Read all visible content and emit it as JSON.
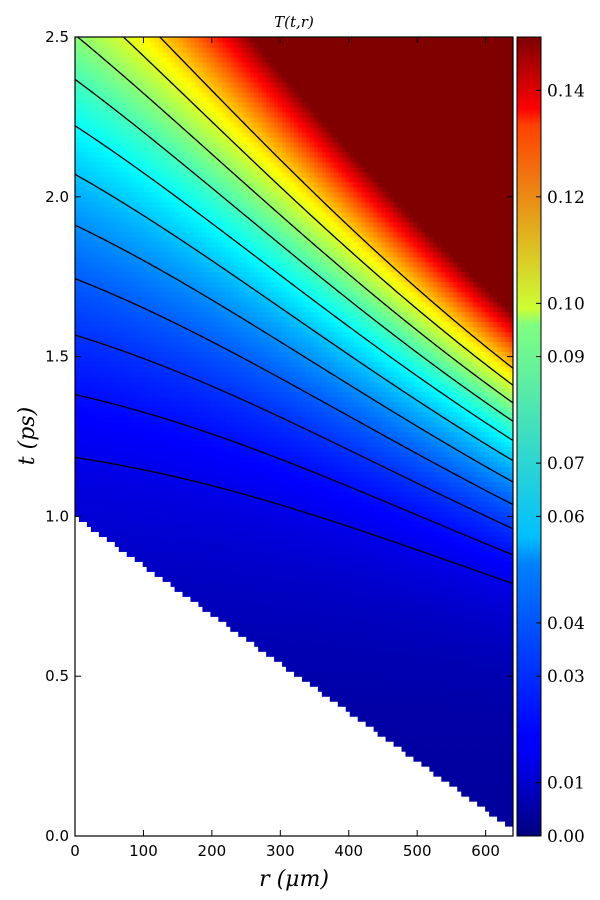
{
  "chart_data": {
    "type": "heatmap",
    "title": "T(t,r)",
    "xlabel": "r   (μm)",
    "ylabel": "t   (ps)",
    "xlim": [
      0,
      640
    ],
    "ylim": [
      0,
      2.5
    ],
    "x_ticks": [
      0,
      100,
      200,
      300,
      400,
      500,
      600
    ],
    "y_ticks": [
      0.0,
      0.5,
      1.0,
      1.5,
      2.0,
      2.5
    ],
    "x_tick_labels": [
      "0",
      "100",
      "200",
      "300",
      "400",
      "500",
      "600"
    ],
    "y_tick_labels": [
      "0.0",
      "0.5",
      "1.0",
      "1.5",
      "2.0",
      "2.5"
    ],
    "colorbar": {
      "range": [
        0,
        0.15
      ],
      "ticks": [
        0.0,
        0.01,
        0.03,
        0.04,
        0.06,
        0.07,
        0.09,
        0.1,
        0.12,
        0.14
      ],
      "tick_labels": [
        "0.00",
        "0.01",
        "0.03",
        "0.04",
        "0.06",
        "0.07",
        "0.09",
        "0.10",
        "0.12",
        "0.14"
      ]
    },
    "domain_boundary": {
      "points": [
        [
          0,
          1.0
        ],
        [
          640,
          0.02
        ]
      ]
    },
    "colormap": "jet",
    "contour_color": "#000000"
  }
}
